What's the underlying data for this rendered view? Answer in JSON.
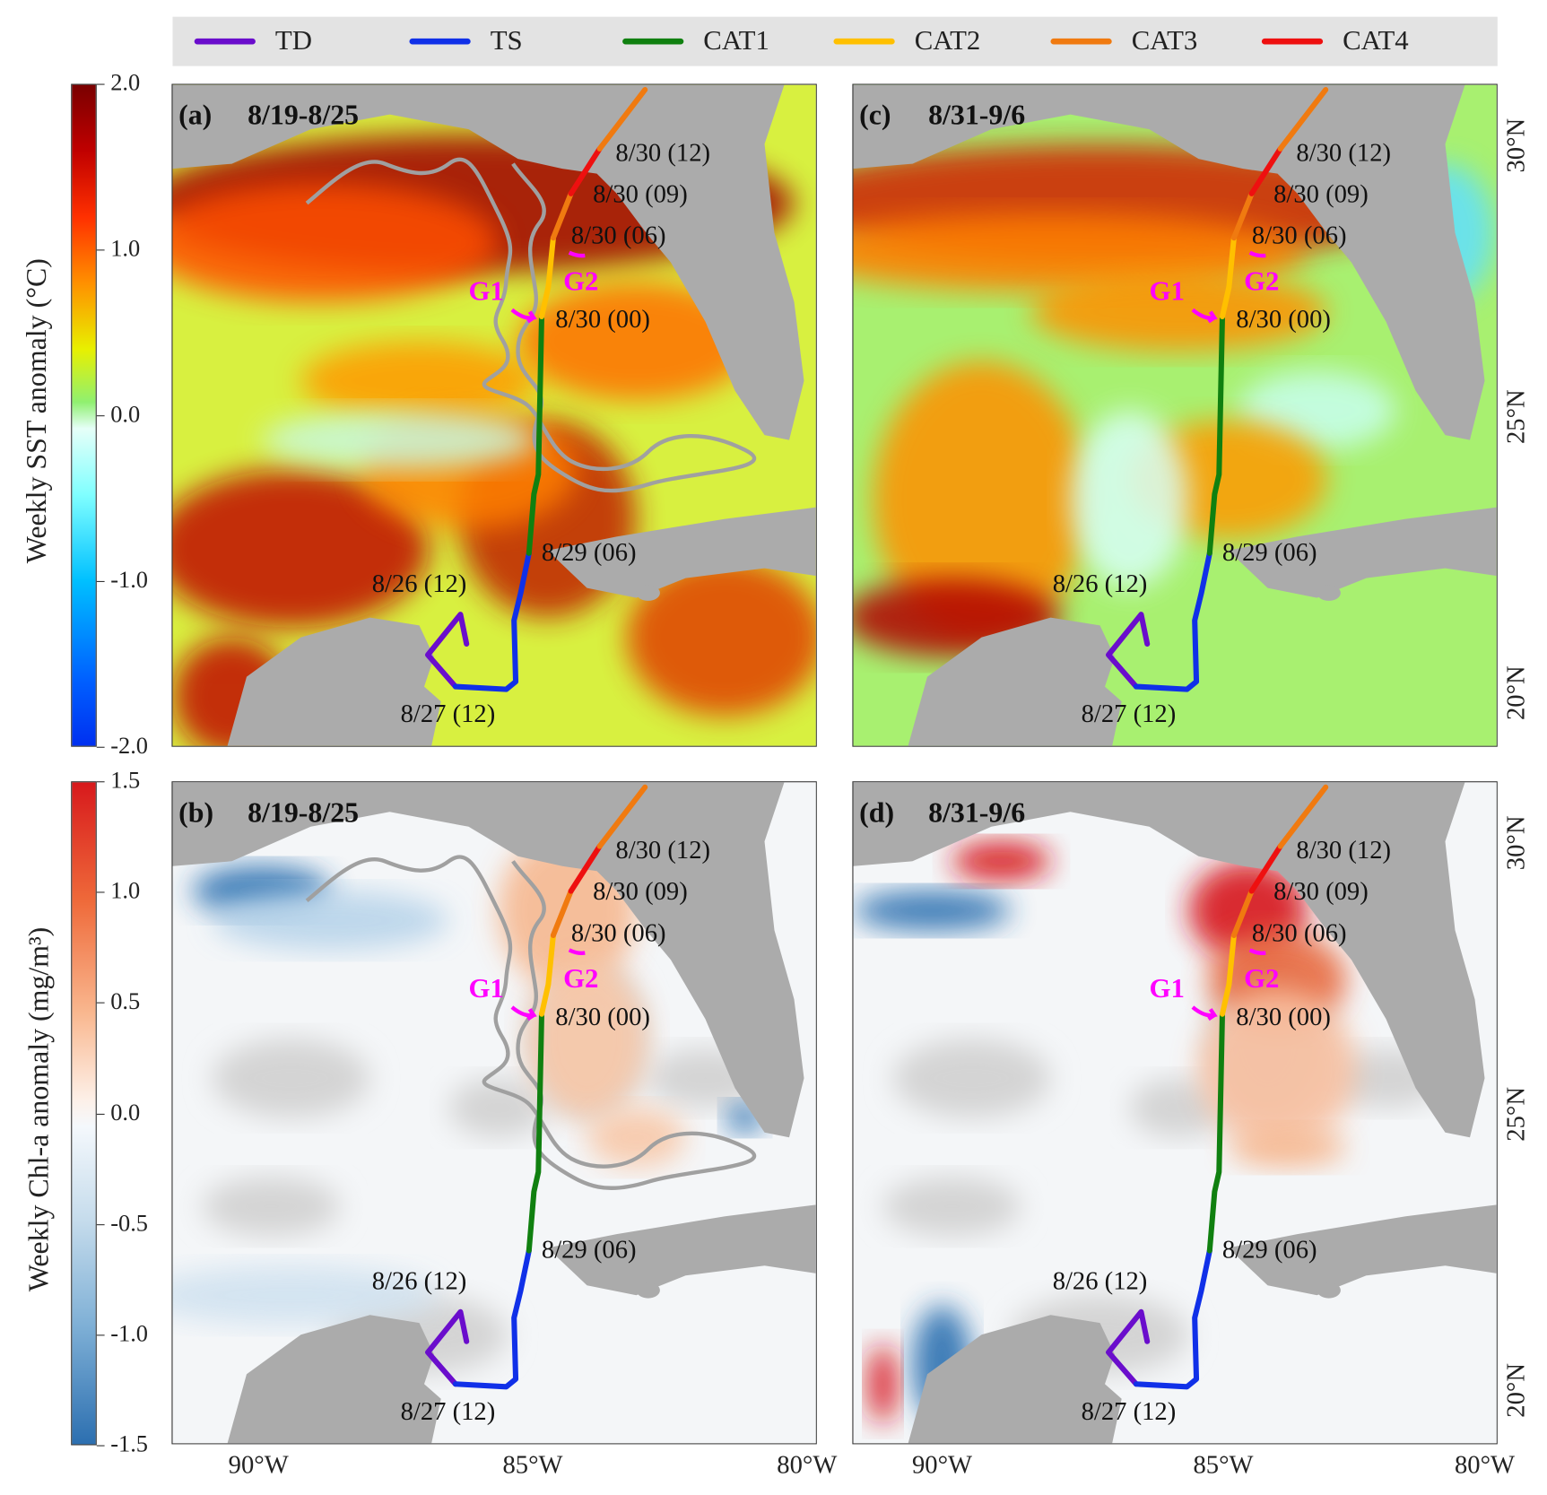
{
  "legend": [
    {
      "label": "TD",
      "color": "#6a0dcc"
    },
    {
      "label": "TS",
      "color": "#1030e8"
    },
    {
      "label": "CAT1",
      "color": "#108010"
    },
    {
      "label": "CAT2",
      "color": "#ffc000"
    },
    {
      "label": "CAT3",
      "color": "#f07a10"
    },
    {
      "label": "CAT4",
      "color": "#ee1010"
    }
  ],
  "colorbars": [
    {
      "title": "Weekly SST anomaly (°C)",
      "ticks": [
        "2.0",
        "1.0",
        "0.0",
        "-1.0",
        "-2.0"
      ]
    },
    {
      "title": "Weekly Chl-a anomaly (mg/m³)",
      "ticks": [
        "1.5",
        "1.0",
        "0.5",
        "0.0",
        "-0.5",
        "-1.0",
        "-1.5"
      ]
    }
  ],
  "panels": [
    {
      "id": "a",
      "letter": "(a)",
      "period": "8/19-8/25",
      "variable": "SST",
      "contour": true
    },
    {
      "id": "c",
      "letter": "(c)",
      "period": "8/31-9/6",
      "variable": "SST",
      "contour": false
    },
    {
      "id": "b",
      "letter": "(b)",
      "period": "8/19-8/25",
      "variable": "Chl-a",
      "contour": true
    },
    {
      "id": "d",
      "letter": "(d)",
      "period": "8/31-9/6",
      "variable": "Chl-a",
      "contour": false
    }
  ],
  "track_annotations": [
    "8/30 (12)",
    "8/30 (09)",
    "8/30 (06)",
    "8/30 (00)",
    "8/29 (06)",
    "8/26 (12)",
    "8/27 (12)"
  ],
  "gliders": [
    "G1",
    "G2"
  ],
  "glider_color": "#ff00ff",
  "contour_color": "#a0a0a0",
  "track": [
    {
      "category": "TD",
      "points": [
        [
          -86.28,
          20.87
        ],
        [
          -86.39,
          21.41
        ],
        [
          -86.98,
          20.67
        ],
        [
          -86.48,
          20.09
        ]
      ]
    },
    {
      "category": "TS",
      "points": [
        [
          -86.48,
          20.09
        ],
        [
          -85.56,
          20.04
        ],
        [
          -85.39,
          20.18
        ],
        [
          -85.42,
          21.3
        ],
        [
          -85.3,
          21.8
        ],
        [
          -85.15,
          22.53
        ]
      ]
    },
    {
      "category": "CAT1",
      "points": [
        [
          -85.15,
          22.53
        ],
        [
          -85.06,
          23.61
        ],
        [
          -84.98,
          23.97
        ],
        [
          -84.92,
          26.86
        ]
      ]
    },
    {
      "category": "CAT2",
      "points": [
        [
          -84.92,
          26.86
        ],
        [
          -84.8,
          27.4
        ],
        [
          -84.71,
          28.3
        ]
      ]
    },
    {
      "category": "CAT3",
      "points": [
        [
          -84.71,
          28.3
        ],
        [
          -84.39,
          29.11
        ]
      ]
    },
    {
      "category": "CAT4",
      "points": [
        [
          -84.39,
          29.11
        ],
        [
          -83.87,
          29.93
        ]
      ]
    },
    {
      "category": "CAT3",
      "points": [
        [
          -83.87,
          29.93
        ],
        [
          -83.05,
          31.01
        ]
      ]
    }
  ],
  "axes": {
    "lon_ticks": [
      "90°W",
      "85°W",
      "80°W"
    ],
    "lat_ticks": [
      "30°N",
      "25°N",
      "20°N"
    ]
  }
}
